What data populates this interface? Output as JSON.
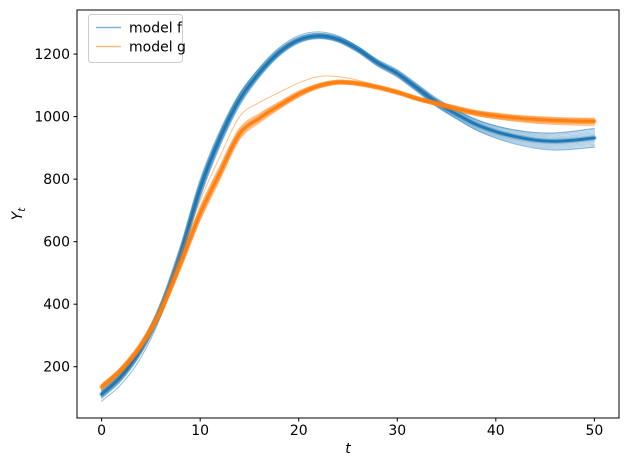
{
  "figure": {
    "background": "#ffffff"
  },
  "chart_data": {
    "type": "line",
    "title": "",
    "xlabel": "t",
    "ylabel": "Y_t",
    "ylabel_main": "Y",
    "ylabel_sub": "t",
    "xlim": [
      -2.5,
      52.5
    ],
    "ylim": [
      36,
      1341
    ],
    "x_ticks": [
      0,
      10,
      20,
      30,
      40,
      50
    ],
    "y_ticks": [
      200,
      400,
      600,
      800,
      1000,
      1200
    ],
    "grid": false,
    "legend": {
      "position": "upper left",
      "entries": [
        "model f",
        "model g"
      ]
    },
    "x": [
      0,
      2,
      4,
      6,
      8,
      10,
      12,
      14,
      16,
      18,
      20,
      22,
      24,
      26,
      28,
      30,
      32,
      34,
      36,
      38,
      40,
      42,
      44,
      46,
      48,
      50
    ],
    "series": [
      {
        "name": "model f",
        "color": "#1f77b4",
        "mean": [
          112,
          170,
          258,
          385,
          560,
          770,
          930,
          1055,
          1140,
          1205,
          1245,
          1258,
          1247,
          1215,
          1172,
          1138,
          1092,
          1045,
          1008,
          975,
          952,
          936,
          925,
          921,
          925,
          932
        ],
        "halfwidth": [
          14,
          15,
          17,
          22,
          28,
          30,
          26,
          20,
          15,
          12,
          10,
          9,
          9,
          10,
          11,
          12,
          13,
          14,
          15,
          17,
          19,
          21,
          23,
          25,
          27,
          28
        ],
        "outlier_offsets": [
          [
            -22,
            -26,
            -28,
            -24,
            -16,
            -8,
            -3,
            -1,
            0,
            0,
            0,
            0,
            0,
            0,
            0,
            0,
            0,
            0,
            0,
            0,
            0,
            0,
            0,
            0,
            0,
            0
          ],
          [
            5,
            6,
            8,
            10,
            12,
            14,
            15,
            16,
            16,
            15,
            14,
            13,
            11,
            8,
            5,
            2,
            0,
            0,
            0,
            0,
            0,
            0,
            0,
            0,
            0,
            0
          ],
          [
            0,
            0,
            0,
            0,
            0,
            0,
            0,
            0,
            0,
            0,
            0,
            0,
            0,
            0,
            -2,
            -4,
            -7,
            -10,
            -14,
            -18,
            -21,
            -24,
            -26,
            -28,
            -29,
            -30
          ],
          [
            0,
            0,
            0,
            0,
            0,
            0,
            0,
            0,
            0,
            0,
            0,
            0,
            0,
            0,
            1,
            3,
            5,
            8,
            11,
            15,
            18,
            21,
            24,
            27,
            29,
            31
          ]
        ]
      },
      {
        "name": "model g",
        "color": "#ff7f0e",
        "mean": [
          135,
          190,
          268,
          378,
          530,
          690,
          820,
          945,
          995,
          1035,
          1072,
          1098,
          1110,
          1106,
          1094,
          1078,
          1058,
          1042,
          1026,
          1012,
          1003,
          996,
          991,
          988,
          986,
          985
        ],
        "halfwidth": [
          9,
          10,
          11,
          14,
          19,
          23,
          23,
          19,
          15,
          12,
          10,
          8,
          7,
          7,
          7,
          7,
          7,
          7,
          8,
          8,
          9,
          9,
          10,
          10,
          10,
          10
        ],
        "outlier_offsets": [
          [
            8,
            10,
            14,
            20,
            30,
            42,
            52,
            55,
            50,
            42,
            36,
            30,
            18,
            10,
            5,
            2,
            0,
            0,
            0,
            0,
            0,
            0,
            0,
            0,
            0,
            0
          ],
          [
            0,
            0,
            0,
            0,
            0,
            0,
            0,
            0,
            0,
            0,
            0,
            0,
            0,
            0,
            -2,
            -3,
            -5,
            -6,
            -8,
            -9,
            -10,
            -11,
            -12,
            -13,
            -13,
            -14
          ]
        ]
      }
    ],
    "ensemble": {
      "member_scales": [
        -1,
        -0.86,
        -0.72,
        -0.58,
        -0.45,
        -0.33,
        -0.22,
        -0.12,
        -0.05,
        0,
        0.05,
        0.12,
        0.22,
        0.33,
        0.45,
        0.58,
        0.72,
        0.86,
        1
      ]
    },
    "style": {
      "spine_color": "#000000",
      "legend_edge_color": "#cccccc",
      "legend_face_color": "#ffffff"
    }
  }
}
